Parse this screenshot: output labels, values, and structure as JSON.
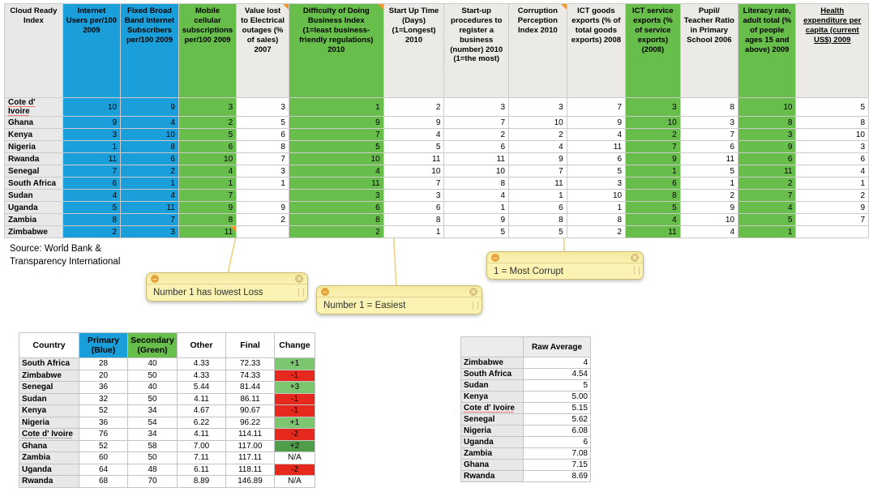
{
  "palette": {
    "blue": "#1b9fda",
    "green": "#68be4b",
    "change_red": "#e6291e",
    "change_green": "#7cc66f",
    "change_dark_green": "#4f9d4a",
    "note_yellow": "#fbf3b2",
    "comment_triangle_orange": "#f0962e",
    "row_label_gray": "#e8e8e8"
  },
  "main_table": {
    "corner_label": "Cloud Ready Index",
    "columns": [
      {
        "label": "Internet Users per/100 2009",
        "color": "blue"
      },
      {
        "label": "Fixed Broad Band Internet Subscribers per/100 2009",
        "color": "blue"
      },
      {
        "label": "Mobile cellular subscriptions per/100 2009",
        "color": "green"
      },
      {
        "label": "Value lost to Electrical outages (% of sales) 2007",
        "color": "none",
        "comment": true
      },
      {
        "label": "Difficulty of Doing Business Index (1=least business-friendly regulations) 2010",
        "color": "green",
        "comment": true
      },
      {
        "label": "Start Up Time (Days) (1=Longest) 2010",
        "color": "none"
      },
      {
        "label": "Start-up procedures to register a business (number) 2010 (1=the most)",
        "color": "none"
      },
      {
        "label": "Corruption Perception Index 2010",
        "color": "none",
        "comment": true
      },
      {
        "label": "ICT goods exports (% of total goods exports) 2008",
        "color": "none"
      },
      {
        "label": "ICT service exports (% of service exports) (2008)",
        "color": "green"
      },
      {
        "label": "Pupil/ Teacher Ratio in Primary School 2006",
        "color": "none"
      },
      {
        "label": "Literacy rate, adult total (% of people ages 15 and above) 2009",
        "color": "green"
      },
      {
        "label": "Health expenditure per capita (current US$) 2009",
        "color": "none",
        "underline": true
      }
    ],
    "rows": [
      {
        "country": "Cote d' Ivoire",
        "spellcheck": true,
        "values": [
          "10",
          "9",
          "3",
          "3",
          "1",
          "2",
          "3",
          "3",
          "7",
          "3",
          "8",
          "10",
          "5"
        ]
      },
      {
        "country": "Ghana",
        "values": [
          "9",
          "4",
          "2",
          "5",
          "9",
          "9",
          "7",
          "10",
          "9",
          "10",
          "3",
          "8",
          "8"
        ]
      },
      {
        "country": "Kenya",
        "values": [
          "3",
          "10",
          "5",
          "6",
          "7",
          "4",
          "2",
          "2",
          "4",
          "2",
          "7",
          "3",
          "10"
        ]
      },
      {
        "country": "Nigeria",
        "values": [
          "1",
          "8",
          "6",
          "8",
          "5",
          "5",
          "6",
          "4",
          "11",
          "7",
          "6",
          "9",
          "3"
        ]
      },
      {
        "country": "Rwanda",
        "values": [
          "11",
          "6",
          "10",
          "7",
          "10",
          "11",
          "11",
          "9",
          "6",
          "9",
          "11",
          "6",
          "6"
        ]
      },
      {
        "country": "Senegal",
        "values": [
          "7",
          "2",
          "4",
          "3",
          "4",
          "10",
          "10",
          "7",
          "5",
          "1",
          "5",
          "11",
          "4"
        ]
      },
      {
        "country": "South Africa",
        "values": [
          "6",
          "1",
          "1",
          "1",
          "11",
          "7",
          "8",
          "11",
          "3",
          "6",
          "1",
          "2",
          "1"
        ]
      },
      {
        "country": "Sudan",
        "values": [
          "4",
          "4",
          "7",
          "",
          "3",
          "3",
          "4",
          "1",
          "10",
          "8",
          "2",
          "7",
          "2"
        ]
      },
      {
        "country": "Uganda",
        "values": [
          "5",
          "11",
          "9",
          "9",
          "6",
          "6",
          "1",
          "6",
          "1",
          "5",
          "9",
          "4",
          "9"
        ]
      },
      {
        "country": "Zambia",
        "values": [
          "8",
          "7",
          "8",
          "2",
          "8",
          "8",
          "9",
          "8",
          "8",
          "4",
          "10",
          "5",
          "7"
        ]
      },
      {
        "country": "Zimbabwe",
        "values": [
          "2",
          "3",
          "11",
          "",
          "2",
          "1",
          "5",
          "5",
          "2",
          "11",
          "4",
          "1",
          ""
        ],
        "comment_cell": 2
      }
    ]
  },
  "source": {
    "line1": "Source: World Bank &",
    "line2": "Transparency International"
  },
  "notes": [
    {
      "text": "Number 1 has lowest Loss",
      "minus_icon": "collapse-note-icon",
      "close_icon": "close-note-icon"
    },
    {
      "text": "Number 1 = Easiest",
      "minus_icon": "collapse-note-icon",
      "close_icon": "close-note-icon"
    },
    {
      "text": "1 = Most Corrupt",
      "minus_icon": "collapse-note-icon",
      "close_icon": "close-note-icon"
    }
  ],
  "rank_table": {
    "headers": [
      {
        "label": "Country",
        "color": "none"
      },
      {
        "label": "Primary (Blue)",
        "color": "blue"
      },
      {
        "label": "Secondary (Green)",
        "color": "green"
      },
      {
        "label": "Other",
        "color": "none"
      },
      {
        "label": "Final",
        "color": "none"
      },
      {
        "label": "Change",
        "color": "none"
      }
    ],
    "rows": [
      {
        "country": "South Africa",
        "primary": "28",
        "secondary": "40",
        "other": "4.33",
        "final": "72.33",
        "change": "+1",
        "change_color": "green"
      },
      {
        "country": "Zimbabwe",
        "primary": "20",
        "secondary": "50",
        "other": "4.33",
        "final": "74.33",
        "change": "-1",
        "change_color": "red"
      },
      {
        "country": "Senegal",
        "primary": "36",
        "secondary": "40",
        "other": "5.44",
        "final": "81.44",
        "change": "+3",
        "change_color": "green"
      },
      {
        "country": "Sudan",
        "primary": "32",
        "secondary": "50",
        "other": "4.11",
        "final": "86.11",
        "change": "-1",
        "change_color": "red"
      },
      {
        "country": "Kenya",
        "primary": "52",
        "secondary": "34",
        "other": "4.67",
        "final": "90.67",
        "change": "-1",
        "change_color": "red"
      },
      {
        "country": "Nigeria",
        "primary": "36",
        "secondary": "54",
        "other": "6.22",
        "final": "96.22",
        "change": "+1",
        "change_color": "green"
      },
      {
        "country": "Cote d' Ivoire",
        "spellcheck": true,
        "primary": "76",
        "secondary": "34",
        "other": "4.11",
        "final": "114.11",
        "change": "-2",
        "change_color": "red"
      },
      {
        "country": "Ghana",
        "primary": "52",
        "secondary": "58",
        "other": "7.00",
        "final": "117.00",
        "change": "+2",
        "change_color": "dgreen"
      },
      {
        "country": "Zambia",
        "primary": "60",
        "secondary": "50",
        "other": "7.11",
        "final": "117.11",
        "change": "N/A",
        "change_color": "none"
      },
      {
        "country": "Uganda",
        "primary": "64",
        "secondary": "48",
        "other": "6.11",
        "final": "118.11",
        "change": "-2",
        "change_color": "red"
      },
      {
        "country": "Rwanda",
        "primary": "68",
        "secondary": "70",
        "other": "8.89",
        "final": "146.89",
        "change": "N/A",
        "change_color": "none"
      }
    ]
  },
  "avg_table": {
    "header": "Raw Average",
    "rows": [
      {
        "country": "Zimbabwe",
        "value": "4"
      },
      {
        "country": "South Africa",
        "value": "4.54"
      },
      {
        "country": "Sudan",
        "value": "5"
      },
      {
        "country": "Kenya",
        "value": "5.00"
      },
      {
        "country": "Cote d' Ivoire",
        "spellcheck": true,
        "value": "5.15"
      },
      {
        "country": "Senegal",
        "value": "5.62"
      },
      {
        "country": "Nigeria",
        "value": "6.08"
      },
      {
        "country": "Uganda",
        "value": "6"
      },
      {
        "country": "Zambia",
        "value": "7.08"
      },
      {
        "country": "Ghana",
        "value": "7.15"
      },
      {
        "country": "Rwanda",
        "value": "8.69"
      }
    ]
  }
}
